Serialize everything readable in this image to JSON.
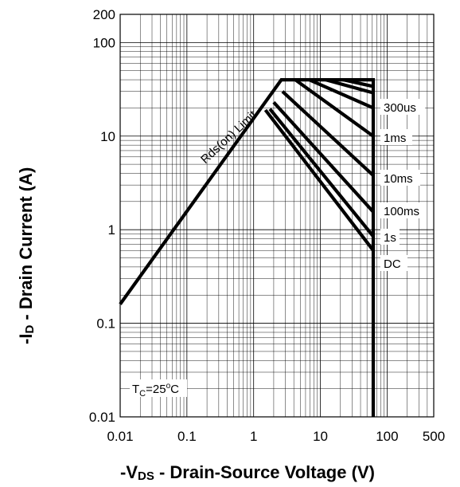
{
  "chart_data": {
    "type": "line",
    "xlabel": "-V",
    "xlabel_sub": "DS",
    "xlabel_rest": " - Drain-Source Voltage (V)",
    "ylabel": "-I",
    "ylabel_sub": "D",
    "ylabel_rest": " - Drain Current (A)",
    "xscale": "log",
    "yscale": "log",
    "xlim": [
      0.01,
      500
    ],
    "ylim": [
      0.01,
      200
    ],
    "grid": true,
    "x_ticks": [
      {
        "value": 0.01,
        "label": "0.01"
      },
      {
        "value": 0.1,
        "label": "0.1"
      },
      {
        "value": 1,
        "label": "1"
      },
      {
        "value": 10,
        "label": "10"
      },
      {
        "value": 100,
        "label": "100"
      },
      {
        "value": 500,
        "label": "500"
      }
    ],
    "y_ticks": [
      {
        "value": 0.01,
        "label": "0.01"
      },
      {
        "value": 0.1,
        "label": "0.1"
      },
      {
        "value": 1,
        "label": "1"
      },
      {
        "value": 10,
        "label": "10"
      },
      {
        "value": 100,
        "label": "100"
      },
      {
        "value": 200,
        "label": "200"
      }
    ],
    "series": [
      {
        "name": "Rds(on) Limit",
        "x": [
          0.01,
          2.6,
          62,
          62
        ],
        "y": [
          0.16,
          40,
          40,
          0.01
        ]
      },
      {
        "name": "300us",
        "x": [
          6.8,
          62
        ],
        "y": [
          40,
          20
        ]
      },
      {
        "name": "1ms",
        "x": [
          4.2,
          62
        ],
        "y": [
          40,
          10
        ]
      },
      {
        "name": "10ms",
        "x": [
          2.7,
          62
        ],
        "y": [
          30,
          3.8
        ]
      },
      {
        "name": "100ms",
        "x": [
          2.0,
          62
        ],
        "y": [
          23,
          1.55
        ]
      },
      {
        "name": "1s",
        "x": [
          1.75,
          62
        ],
        "y": [
          19.5,
          0.85
        ]
      },
      {
        "name": "DC",
        "x": [
          1.5,
          62
        ],
        "y": [
          19,
          0.6
        ]
      }
    ],
    "extra_diagonals": [
      {
        "x": [
          12,
          62
        ],
        "y": [
          40,
          29
        ]
      },
      {
        "x": [
          22,
          62
        ],
        "y": [
          40,
          34
        ]
      }
    ],
    "annotations": {
      "rds_limit": "Rds(on) Limit",
      "tc_main": "T",
      "tc_sub": "C",
      "tc_value": "=25",
      "tc_deg": "o",
      "tc_unit": "C",
      "curve_labels": [
        "300us",
        "1ms",
        "10ms",
        "100ms",
        "1s",
        "DC"
      ]
    }
  }
}
